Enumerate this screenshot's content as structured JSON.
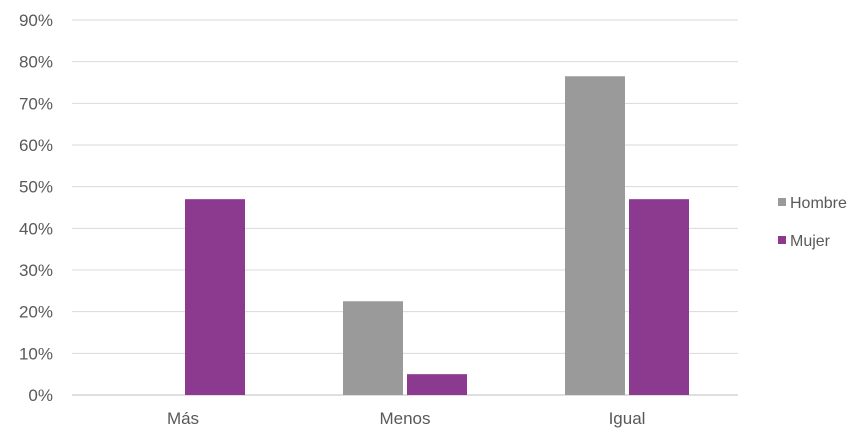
{
  "chart_data": {
    "type": "bar",
    "categories": [
      "Más",
      "Menos",
      "Igual"
    ],
    "series": [
      {
        "name": "Hombre",
        "values": [
          0,
          22.5,
          76.5
        ],
        "color": "#9a9a9a"
      },
      {
        "name": "Mujer",
        "values": [
          47,
          5,
          47
        ],
        "color": "#8b3a8f"
      }
    ],
    "ylim": [
      0,
      90
    ],
    "yticks": [
      0,
      10,
      20,
      30,
      40,
      50,
      60,
      70,
      80,
      90
    ],
    "ytick_labels": [
      "0%",
      "10%",
      "20%",
      "30%",
      "40%",
      "50%",
      "60%",
      "70%",
      "80%",
      "90%"
    ],
    "grid": true,
    "legend_position": "right",
    "title": "",
    "xlabel": "",
    "ylabel": ""
  }
}
